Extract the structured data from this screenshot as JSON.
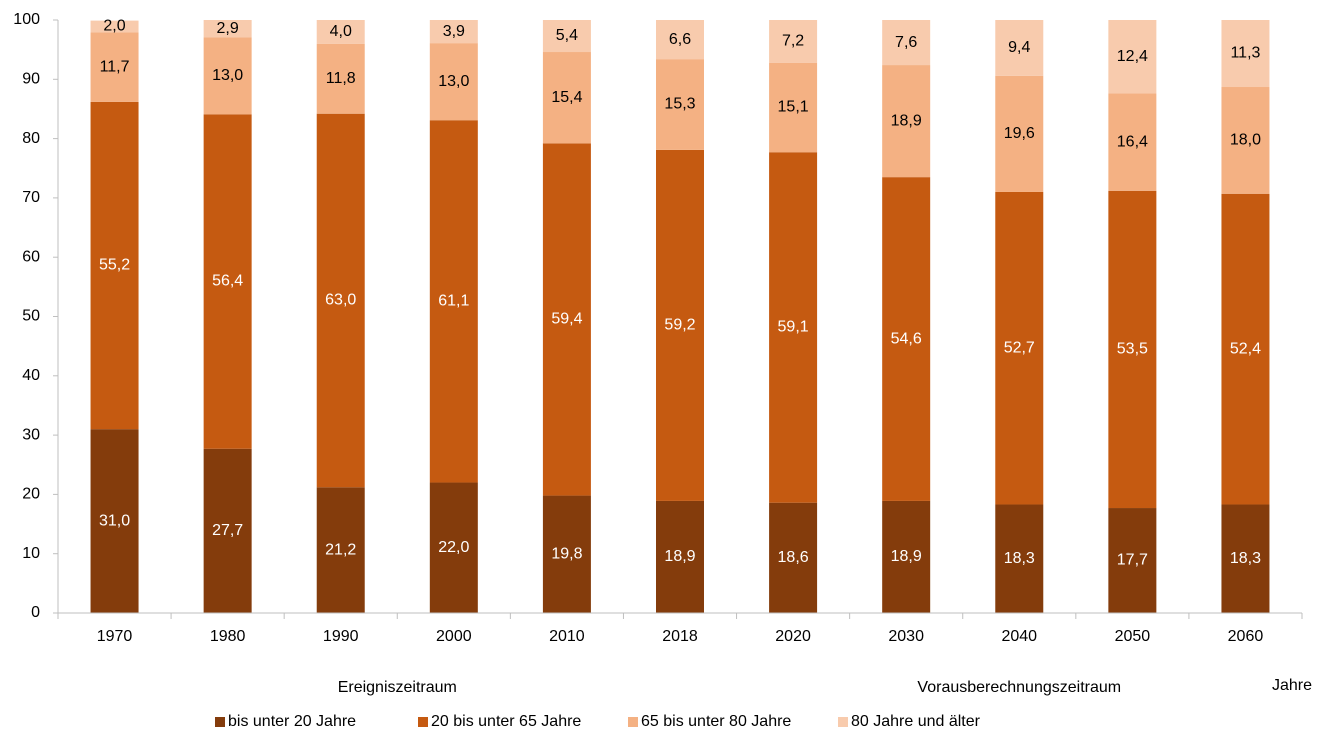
{
  "chart_data": {
    "type": "stacked_bar",
    "categories": [
      "1970",
      "1980",
      "1990",
      "2000",
      "2010",
      "2018",
      "2020",
      "2030",
      "2040",
      "2050",
      "2060"
    ],
    "series": [
      {
        "name": "bis unter 20 Jahre",
        "color": "#843c0c",
        "label_color": "#ffffff",
        "values": [
          31.0,
          27.7,
          21.2,
          22.0,
          19.8,
          18.9,
          18.6,
          18.9,
          18.3,
          17.7,
          18.3
        ],
        "value_labels": [
          "31,0",
          "27,7",
          "21,2",
          "22,0",
          "19,8",
          "18,9",
          "18,6",
          "18,9",
          "18,3",
          "17,7",
          "18,3"
        ]
      },
      {
        "name": "20 bis unter 65 Jahre",
        "color": "#c55a11",
        "label_color": "#ffffff",
        "values": [
          55.2,
          56.4,
          63.0,
          61.1,
          59.4,
          59.2,
          59.1,
          54.6,
          52.7,
          53.5,
          52.4
        ],
        "value_labels": [
          "55,2",
          "56,4",
          "63,0",
          "61,1",
          "59,4",
          "59,2",
          "59,1",
          "54,6",
          "52,7",
          "53,5",
          "52,4"
        ]
      },
      {
        "name": "65 bis unter 80 Jahre",
        "color": "#f4b183",
        "label_color": "#000000",
        "values": [
          11.7,
          13.0,
          11.8,
          13.0,
          15.4,
          15.3,
          15.1,
          18.9,
          19.6,
          16.4,
          18.0
        ],
        "value_labels": [
          "11,7",
          "13,0",
          "11,8",
          "13,0",
          "15,4",
          "15,3",
          "15,1",
          "18,9",
          "19,6",
          "16,4",
          "18,0"
        ]
      },
      {
        "name": "80 Jahre und älter",
        "color": "#f8cbad",
        "label_color": "#000000",
        "values": [
          2.0,
          2.9,
          4.0,
          3.9,
          5.4,
          6.6,
          7.2,
          7.6,
          9.4,
          12.4,
          11.3
        ],
        "value_labels": [
          "2,0",
          "2,9",
          "4,0",
          "3,9",
          "5,4",
          "6,6",
          "7,2",
          "7,6",
          "9,4",
          "12,4",
          "11,3"
        ]
      }
    ],
    "xlabel": "Jahre",
    "annotations": [
      "Ereigniszeitraum",
      "Vorausberechnungszeitraum"
    ],
    "ylim": [
      0,
      100
    ],
    "yticks": [
      0,
      10,
      20,
      30,
      40,
      50,
      60,
      70,
      80,
      90,
      100
    ],
    "legend": "bottom"
  }
}
